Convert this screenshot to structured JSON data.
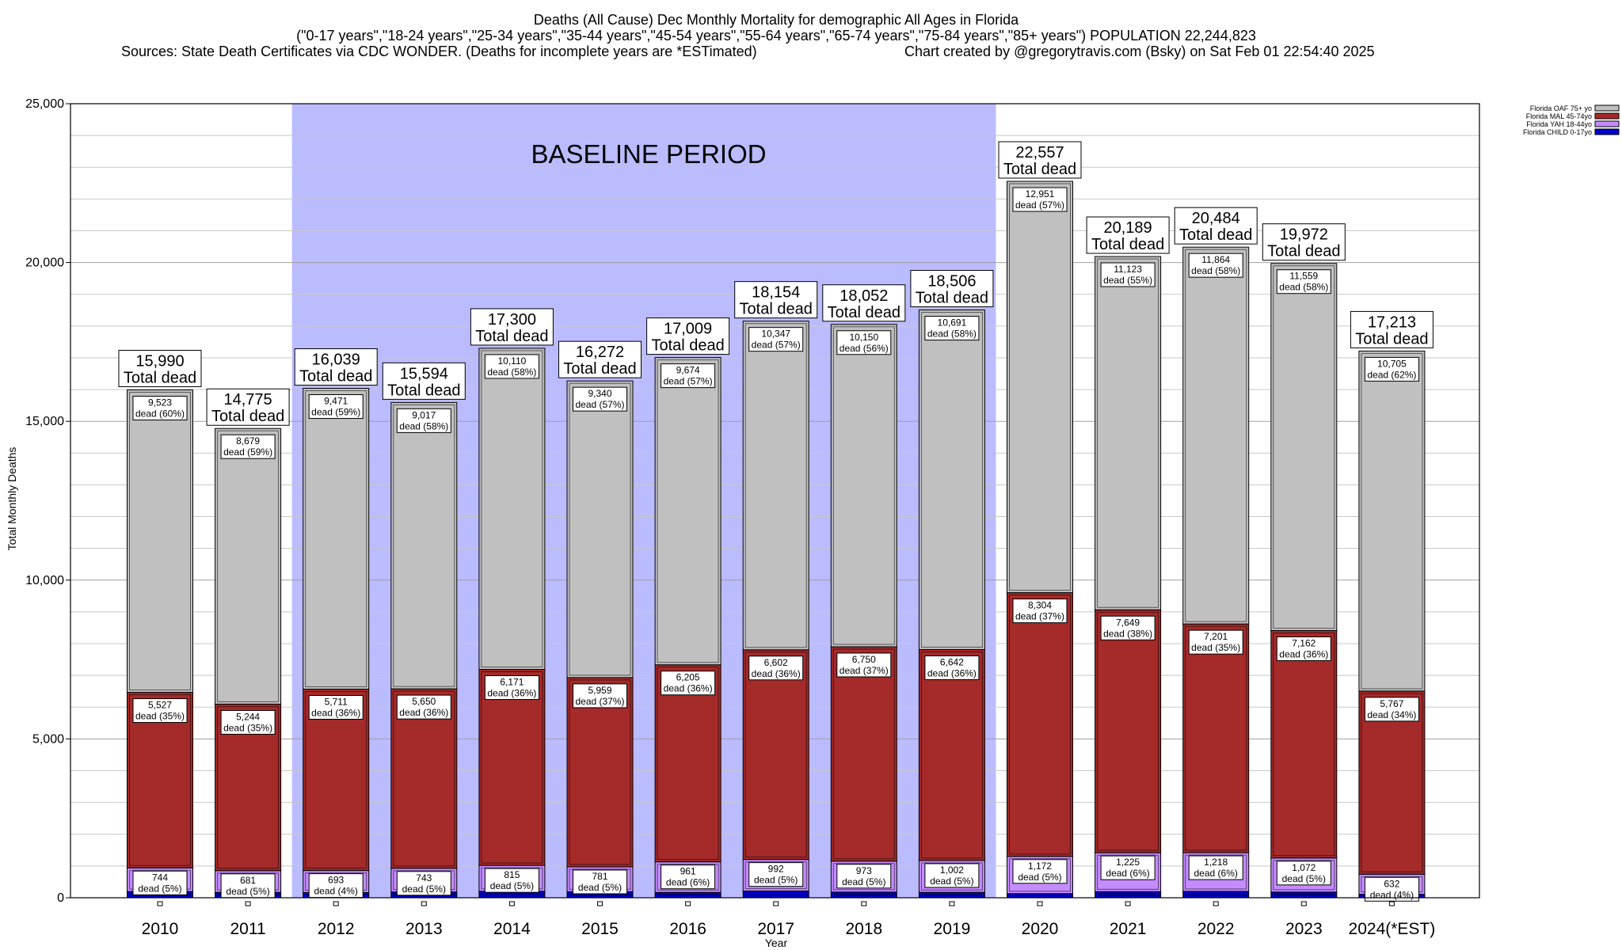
{
  "chart_data": {
    "type": "bar",
    "stacked": true,
    "title_lines": [
      "Deaths (All Cause) Dec Monthly Mortality for demographic All Ages in Florida",
      "(\"0-17 years\",\"18-24 years\",\"25-34 years\",\"35-44 years\",\"45-54 years\",\"55-64 years\",\"65-74 years\",\"75-84 years\",\"85+ years\") POPULATION 22,244,823",
      "Sources: State Death Certificates via CDC WONDER. (Deaths for incomplete years are *ESTimated)",
      "Chart created by @gregorytravis.com (Bsky) on Sat Feb 01 22:54:40 2025"
    ],
    "xlabel": "Year",
    "ylabel": "Total Monthly Deaths",
    "ylim": [
      0,
      25000
    ],
    "yticks": [
      0,
      5000,
      10000,
      15000,
      20000,
      25000
    ],
    "ytick_labels": [
      "0",
      "5,000",
      "10,000",
      "15,000",
      "20,000",
      "25,000"
    ],
    "grid": true,
    "categories": [
      "2010",
      "2011",
      "2012",
      "2013",
      "2014",
      "2015",
      "2016",
      "2017",
      "2018",
      "2019",
      "2020",
      "2021",
      "2022",
      "2023",
      "2024(*EST)"
    ],
    "series": [
      {
        "name": "Florida CHILD 0-17yo",
        "color": "#0000cc",
        "values": [
          196,
          171,
          164,
          184,
          204,
          192,
          169,
          213,
          179,
          171,
          130,
          192,
          201,
          179,
          109
        ]
      },
      {
        "name": "Florida YAH 18-44yo",
        "color": "#c58cff",
        "values": [
          744,
          681,
          693,
          743,
          815,
          781,
          961,
          992,
          973,
          1002,
          1172,
          1225,
          1218,
          1072,
          632
        ]
      },
      {
        "name": "Florida MAL 45-74yo",
        "color": "#a52a2a",
        "values": [
          5527,
          5244,
          5711,
          5650,
          6171,
          5959,
          6205,
          6602,
          6750,
          6642,
          8304,
          7649,
          7201,
          7162,
          5767
        ]
      },
      {
        "name": "Florida OAF 75+ yo",
        "color": "#c0c0c0",
        "values": [
          9523,
          8679,
          9471,
          9017,
          10110,
          9340,
          9674,
          10347,
          10150,
          10691,
          12951,
          11123,
          11864,
          11559,
          10705
        ]
      }
    ],
    "totals": [
      15990,
      14775,
      16039,
      15594,
      17300,
      16272,
      17009,
      18154,
      18052,
      18506,
      22557,
      20189,
      20484,
      19972,
      17213
    ],
    "segment_labels": {
      "Florida OAF 75+ yo": [
        [
          "9,523",
          "dead (60%)"
        ],
        [
          "8,679",
          "dead (59%)"
        ],
        [
          "9,471",
          "dead (59%)"
        ],
        [
          "9,017",
          "dead (58%)"
        ],
        [
          "10,110",
          "dead (58%)"
        ],
        [
          "9,340",
          "dead (57%)"
        ],
        [
          "9,674",
          "dead (57%)"
        ],
        [
          "10,347",
          "dead (57%)"
        ],
        [
          "10,150",
          "dead (56%)"
        ],
        [
          "10,691",
          "dead (58%)"
        ],
        [
          "12,951",
          "dead (57%)"
        ],
        [
          "11,123",
          "dead (55%)"
        ],
        [
          "11,864",
          "dead (58%)"
        ],
        [
          "11,559",
          "dead (58%)"
        ],
        [
          "10,705",
          "dead (62%)"
        ]
      ],
      "Florida MAL 45-74yo": [
        [
          "5,527",
          "dead (35%)"
        ],
        [
          "5,244",
          "dead (35%)"
        ],
        [
          "5,711",
          "dead (36%)"
        ],
        [
          "5,650",
          "dead (36%)"
        ],
        [
          "6,171",
          "dead (36%)"
        ],
        [
          "5,959",
          "dead (37%)"
        ],
        [
          "6,205",
          "dead (36%)"
        ],
        [
          "6,602",
          "dead (36%)"
        ],
        [
          "6,750",
          "dead (37%)"
        ],
        [
          "6,642",
          "dead (36%)"
        ],
        [
          "8,304",
          "dead (37%)"
        ],
        [
          "7,649",
          "dead (38%)"
        ],
        [
          "7,201",
          "dead (35%)"
        ],
        [
          "7,162",
          "dead (36%)"
        ],
        [
          "5,767",
          "dead (34%)"
        ]
      ],
      "Florida YAH 18-44yo": [
        [
          "744",
          "dead (5%)"
        ],
        [
          "681",
          "dead (5%)"
        ],
        [
          "693",
          "dead (4%)"
        ],
        [
          "743",
          "dead (5%)"
        ],
        [
          "815",
          "dead (5%)"
        ],
        [
          "781",
          "dead (5%)"
        ],
        [
          "961",
          "dead (6%)"
        ],
        [
          "992",
          "dead (5%)"
        ],
        [
          "973",
          "dead (5%)"
        ],
        [
          "1,002",
          "dead (5%)"
        ],
        [
          "1,172",
          "dead (5%)"
        ],
        [
          "1,225",
          "dead (6%)"
        ],
        [
          "1,218",
          "dead (6%)"
        ],
        [
          "1,072",
          "dead (5%)"
        ],
        [
          "632",
          "dead (4%)"
        ]
      ]
    },
    "total_label_suffix": "Total dead",
    "baseline_period": {
      "label": "BASELINE PERIOD",
      "start": "2012",
      "end": "2019",
      "color": "#bbbbff"
    },
    "legend": {
      "position": "top-right",
      "entries": [
        "Florida OAF 75+ yo",
        "Florida MAL 45-74yo",
        "Florida YAH 18-44yo",
        "Florida CHILD 0-17yo"
      ]
    }
  }
}
